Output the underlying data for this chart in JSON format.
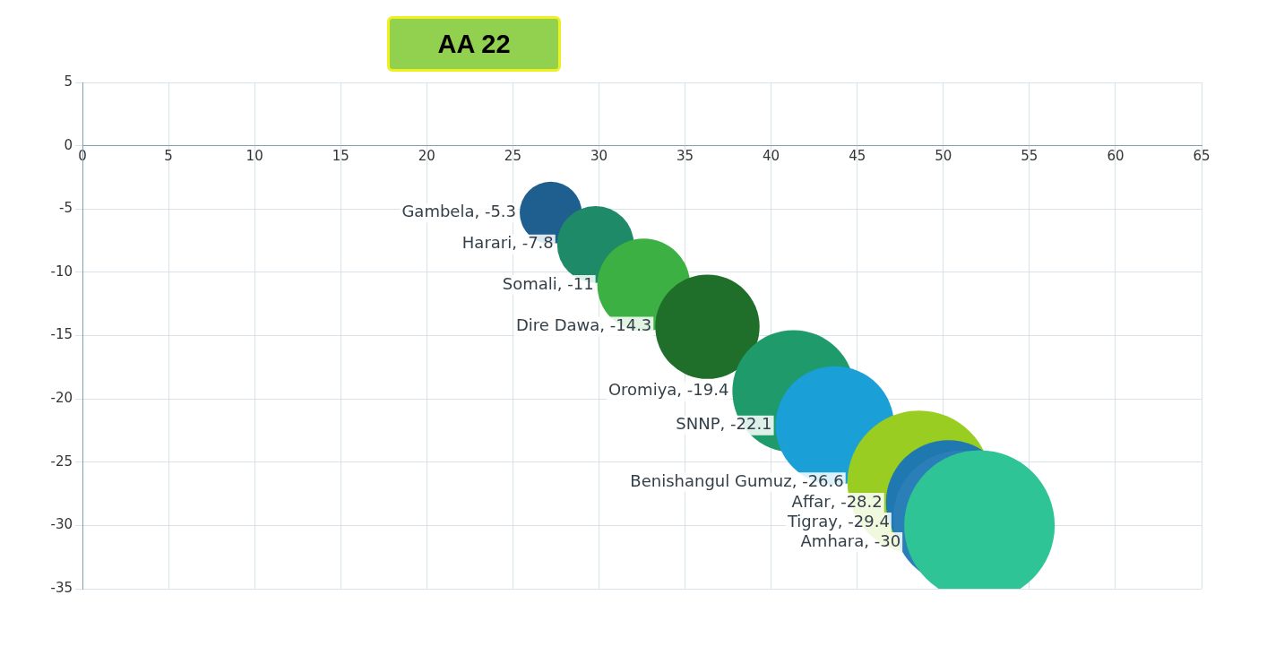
{
  "chart_data": {
    "type": "bubble",
    "title": "AA 22",
    "x": [
      27.2,
      29.8,
      32.6,
      36.3,
      41.3,
      43.7,
      48.6,
      50.3,
      51.0,
      52.1
    ],
    "values": [
      -5.3,
      -7.8,
      -11,
      -14.3,
      -19.4,
      -22.1,
      -26.6,
      -28.2,
      -29.4,
      -30
    ],
    "sizes": [
      0.17,
      0.26,
      0.38,
      0.48,
      0.66,
      0.62,
      0.91,
      0.69,
      0.8,
      1
    ],
    "colors": [
      "#1f5f8f",
      "#1f8a68",
      "#3cb043",
      "#1f6f2b",
      "#1f9a6b",
      "#1a9fd6",
      "#9acd22",
      "#1f78b0",
      "#2a7fb8",
      "#2fc496"
    ],
    "value_labels": [
      "Gambela, -5.3",
      "Harari, -7.8",
      "Somali, -11",
      "Dire Dawa, -14.3",
      "Oromiya, -19.4",
      "SNNP, -22.1",
      "Benishangul Gumuz, -26.6",
      "Affar, -28.2",
      "Tigray, -29.4",
      "Amhara, -30"
    ],
    "xlim": [
      0,
      65
    ],
    "xticks": [
      0,
      5,
      10,
      15,
      20,
      25,
      30,
      35,
      40,
      45,
      50,
      55,
      60,
      65
    ],
    "ylim": [
      -35,
      5
    ],
    "yticks": [
      5,
      0,
      -5,
      -10,
      -15,
      -20,
      -25,
      -30,
      -35
    ],
    "grid": true,
    "legend": false
  }
}
